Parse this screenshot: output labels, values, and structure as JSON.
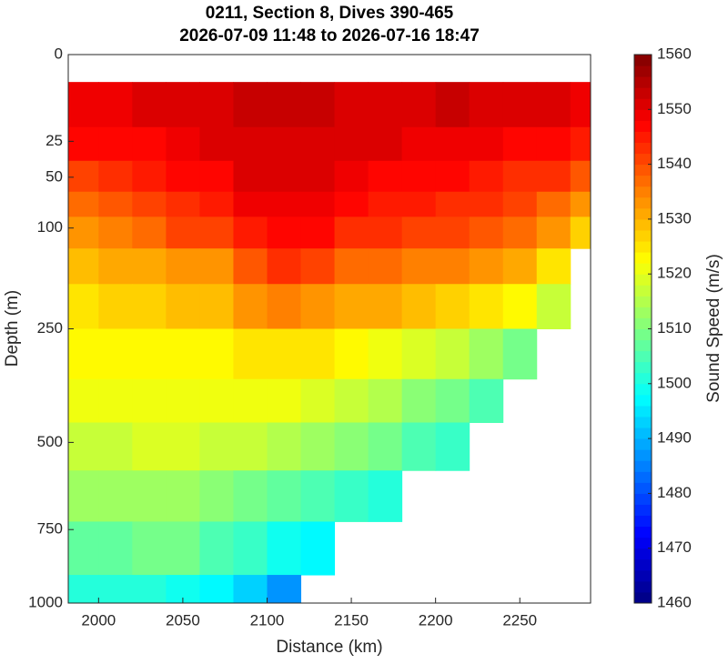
{
  "chart_data": {
    "type": "section",
    "title": "0211, Section 8, Dives 390-465",
    "subtitle": "2026-07-09 11:48 to 2026-07-16 18:47",
    "xlabel": "Distance (km)",
    "ylabel": "Depth (m)",
    "colorbar_label": "Sound Speed (m/s)",
    "xlim": [
      1982,
      2292
    ],
    "xticks": [
      2000,
      2050,
      2100,
      2150,
      2200,
      2250
    ],
    "ylim": [
      0,
      1000
    ],
    "yticks": [
      0,
      25,
      50,
      100,
      250,
      500,
      750,
      1000
    ],
    "yscale": "sqrt",
    "yreversed": true,
    "clim": [
      1460,
      1560
    ],
    "cticks": [
      1460,
      1470,
      1480,
      1490,
      1500,
      1510,
      1520,
      1530,
      1540,
      1550,
      1560
    ],
    "colormap": "jet",
    "color_step": 2,
    "x": [
      1990,
      2010,
      2030,
      2050,
      2070,
      2090,
      2110,
      2130,
      2150,
      2170,
      2190,
      2210,
      2230,
      2250,
      2270,
      2290
    ],
    "depths": [
      10,
      25,
      50,
      75,
      100,
      150,
      200,
      300,
      400,
      500,
      650,
      800,
      1000
    ],
    "z": [
      [
        1548,
        1549,
        1550,
        1550,
        1551,
        1552,
        1552,
        1552,
        1551,
        1551,
        1551,
        1552,
        1551,
        1551,
        1550,
        1549
      ],
      [
        1546,
        1546,
        1547,
        1549,
        1550,
        1551,
        1551,
        1551,
        1550,
        1550,
        1549,
        1549,
        1548,
        1547,
        1546,
        1544
      ],
      [
        1541,
        1542,
        1544,
        1546,
        1547,
        1550,
        1550,
        1550,
        1548,
        1547,
        1546,
        1546,
        1545,
        1543,
        1542,
        1538
      ],
      [
        1537,
        1538,
        1540,
        1543,
        1544,
        1548,
        1549,
        1548,
        1546,
        1545,
        1544,
        1543,
        1542,
        1540,
        1537,
        1532
      ],
      [
        1533,
        1535,
        1537,
        1540,
        1540,
        1545,
        1547,
        1546,
        1543,
        1542,
        1541,
        1540,
        1539,
        1537,
        1533,
        1527
      ],
      [
        1528,
        1530,
        1531,
        1533,
        1533,
        1538,
        1542,
        1540,
        1537,
        1536,
        1535,
        1534,
        1532,
        1530,
        1525,
        null
      ],
      [
        1525,
        1526,
        1527,
        1528,
        1528,
        1532,
        1535,
        1533,
        1531,
        1530,
        1529,
        1527,
        1525,
        1522,
        1517,
        null
      ],
      [
        1522,
        1522,
        1523,
        1523,
        1523,
        1524,
        1525,
        1524,
        1522,
        1521,
        1519,
        1516,
        1512,
        1508,
        null,
        null
      ],
      [
        1520,
        1520,
        1521,
        1521,
        1520,
        1520,
        1520,
        1518,
        1516,
        1514,
        1511,
        1508,
        1504,
        null,
        null,
        null
      ],
      [
        1517,
        1517,
        1518,
        1518,
        1517,
        1516,
        1515,
        1513,
        1511,
        1508,
        1505,
        1502,
        null,
        null,
        null,
        null
      ],
      [
        1512,
        1512,
        1513,
        1513,
        1511,
        1509,
        1507,
        1505,
        1502,
        1500,
        null,
        null,
        null,
        null,
        null,
        null
      ],
      [
        1507,
        1507,
        1508,
        1508,
        1505,
        1502,
        1498,
        1496,
        null,
        null,
        null,
        null,
        null,
        null,
        null,
        null
      ],
      [
        1500,
        1500,
        1500,
        1499,
        1496,
        1492,
        1486,
        null,
        null,
        null,
        null,
        null,
        null,
        null,
        null,
        null
      ]
    ]
  }
}
